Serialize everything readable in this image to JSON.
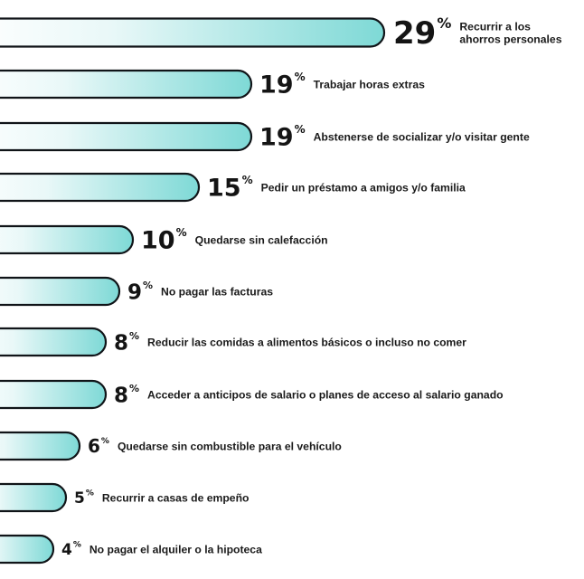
{
  "chart_data": {
    "type": "bar",
    "orientation": "horizontal",
    "unit": "%",
    "colors": {
      "bar_start": "#ffffff",
      "bar_end": "#7ed9d6",
      "bar_outline": "#101418",
      "text": "#141414"
    },
    "categories": [
      [
        "Recurrir a los",
        "ahorros personales"
      ],
      [
        "Trabajar horas extras"
      ],
      [
        "Abstenerse de socializar y/o visitar gente"
      ],
      [
        "Pedir un préstamo a amigos y/o familia"
      ],
      [
        "Quedarse sin calefacción"
      ],
      [
        "No pagar las facturas"
      ],
      [
        "Reducir las comidas a alimentos básicos o incluso no comer"
      ],
      [
        "Acceder a anticipos de salario o planes de acceso al salario ganado"
      ],
      [
        "Quedarse sin combustible para el vehículo"
      ],
      [
        "Recurrir a casas de empeño"
      ],
      [
        "No pagar el alquiler o la hipoteca"
      ]
    ],
    "values": [
      29,
      19,
      19,
      15,
      10,
      9,
      8,
      8,
      6,
      5,
      4
    ],
    "value_labels": [
      "29",
      "19",
      "19",
      "15",
      "10",
      "9",
      "8",
      "8",
      "6",
      "5",
      "4"
    ],
    "percent_sign": "%"
  }
}
